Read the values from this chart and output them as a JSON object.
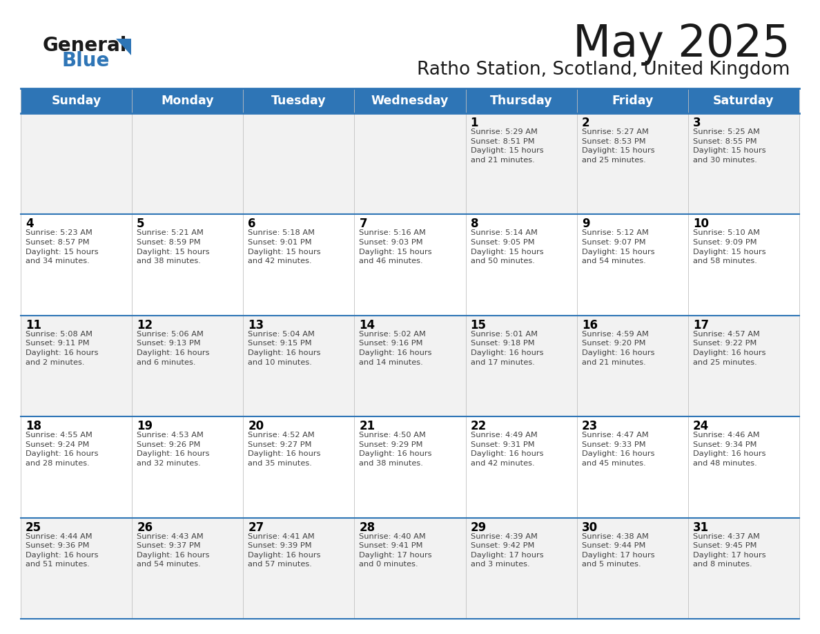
{
  "title": "May 2025",
  "subtitle": "Ratho Station, Scotland, United Kingdom",
  "header_color": "#2E75B6",
  "header_text_color": "#FFFFFF",
  "cell_bg_even": "#F2F2F2",
  "cell_bg_odd": "#FFFFFF",
  "day_number_color": "#000000",
  "text_color": "#404040",
  "line_color": "#2E75B6",
  "days_of_week": [
    "Sunday",
    "Monday",
    "Tuesday",
    "Wednesday",
    "Thursday",
    "Friday",
    "Saturday"
  ],
  "weeks": [
    [
      {
        "day": null,
        "info": null
      },
      {
        "day": null,
        "info": null
      },
      {
        "day": null,
        "info": null
      },
      {
        "day": null,
        "info": null
      },
      {
        "day": 1,
        "info": "Sunrise: 5:29 AM\nSunset: 8:51 PM\nDaylight: 15 hours\nand 21 minutes."
      },
      {
        "day": 2,
        "info": "Sunrise: 5:27 AM\nSunset: 8:53 PM\nDaylight: 15 hours\nand 25 minutes."
      },
      {
        "day": 3,
        "info": "Sunrise: 5:25 AM\nSunset: 8:55 PM\nDaylight: 15 hours\nand 30 minutes."
      }
    ],
    [
      {
        "day": 4,
        "info": "Sunrise: 5:23 AM\nSunset: 8:57 PM\nDaylight: 15 hours\nand 34 minutes."
      },
      {
        "day": 5,
        "info": "Sunrise: 5:21 AM\nSunset: 8:59 PM\nDaylight: 15 hours\nand 38 minutes."
      },
      {
        "day": 6,
        "info": "Sunrise: 5:18 AM\nSunset: 9:01 PM\nDaylight: 15 hours\nand 42 minutes."
      },
      {
        "day": 7,
        "info": "Sunrise: 5:16 AM\nSunset: 9:03 PM\nDaylight: 15 hours\nand 46 minutes."
      },
      {
        "day": 8,
        "info": "Sunrise: 5:14 AM\nSunset: 9:05 PM\nDaylight: 15 hours\nand 50 minutes."
      },
      {
        "day": 9,
        "info": "Sunrise: 5:12 AM\nSunset: 9:07 PM\nDaylight: 15 hours\nand 54 minutes."
      },
      {
        "day": 10,
        "info": "Sunrise: 5:10 AM\nSunset: 9:09 PM\nDaylight: 15 hours\nand 58 minutes."
      }
    ],
    [
      {
        "day": 11,
        "info": "Sunrise: 5:08 AM\nSunset: 9:11 PM\nDaylight: 16 hours\nand 2 minutes."
      },
      {
        "day": 12,
        "info": "Sunrise: 5:06 AM\nSunset: 9:13 PM\nDaylight: 16 hours\nand 6 minutes."
      },
      {
        "day": 13,
        "info": "Sunrise: 5:04 AM\nSunset: 9:15 PM\nDaylight: 16 hours\nand 10 minutes."
      },
      {
        "day": 14,
        "info": "Sunrise: 5:02 AM\nSunset: 9:16 PM\nDaylight: 16 hours\nand 14 minutes."
      },
      {
        "day": 15,
        "info": "Sunrise: 5:01 AM\nSunset: 9:18 PM\nDaylight: 16 hours\nand 17 minutes."
      },
      {
        "day": 16,
        "info": "Sunrise: 4:59 AM\nSunset: 9:20 PM\nDaylight: 16 hours\nand 21 minutes."
      },
      {
        "day": 17,
        "info": "Sunrise: 4:57 AM\nSunset: 9:22 PM\nDaylight: 16 hours\nand 25 minutes."
      }
    ],
    [
      {
        "day": 18,
        "info": "Sunrise: 4:55 AM\nSunset: 9:24 PM\nDaylight: 16 hours\nand 28 minutes."
      },
      {
        "day": 19,
        "info": "Sunrise: 4:53 AM\nSunset: 9:26 PM\nDaylight: 16 hours\nand 32 minutes."
      },
      {
        "day": 20,
        "info": "Sunrise: 4:52 AM\nSunset: 9:27 PM\nDaylight: 16 hours\nand 35 minutes."
      },
      {
        "day": 21,
        "info": "Sunrise: 4:50 AM\nSunset: 9:29 PM\nDaylight: 16 hours\nand 38 minutes."
      },
      {
        "day": 22,
        "info": "Sunrise: 4:49 AM\nSunset: 9:31 PM\nDaylight: 16 hours\nand 42 minutes."
      },
      {
        "day": 23,
        "info": "Sunrise: 4:47 AM\nSunset: 9:33 PM\nDaylight: 16 hours\nand 45 minutes."
      },
      {
        "day": 24,
        "info": "Sunrise: 4:46 AM\nSunset: 9:34 PM\nDaylight: 16 hours\nand 48 minutes."
      }
    ],
    [
      {
        "day": 25,
        "info": "Sunrise: 4:44 AM\nSunset: 9:36 PM\nDaylight: 16 hours\nand 51 minutes."
      },
      {
        "day": 26,
        "info": "Sunrise: 4:43 AM\nSunset: 9:37 PM\nDaylight: 16 hours\nand 54 minutes."
      },
      {
        "day": 27,
        "info": "Sunrise: 4:41 AM\nSunset: 9:39 PM\nDaylight: 16 hours\nand 57 minutes."
      },
      {
        "day": 28,
        "info": "Sunrise: 4:40 AM\nSunset: 9:41 PM\nDaylight: 17 hours\nand 0 minutes."
      },
      {
        "day": 29,
        "info": "Sunrise: 4:39 AM\nSunset: 9:42 PM\nDaylight: 17 hours\nand 3 minutes."
      },
      {
        "day": 30,
        "info": "Sunrise: 4:38 AM\nSunset: 9:44 PM\nDaylight: 17 hours\nand 5 minutes."
      },
      {
        "day": 31,
        "info": "Sunrise: 4:37 AM\nSunset: 9:45 PM\nDaylight: 17 hours\nand 8 minutes."
      }
    ]
  ]
}
